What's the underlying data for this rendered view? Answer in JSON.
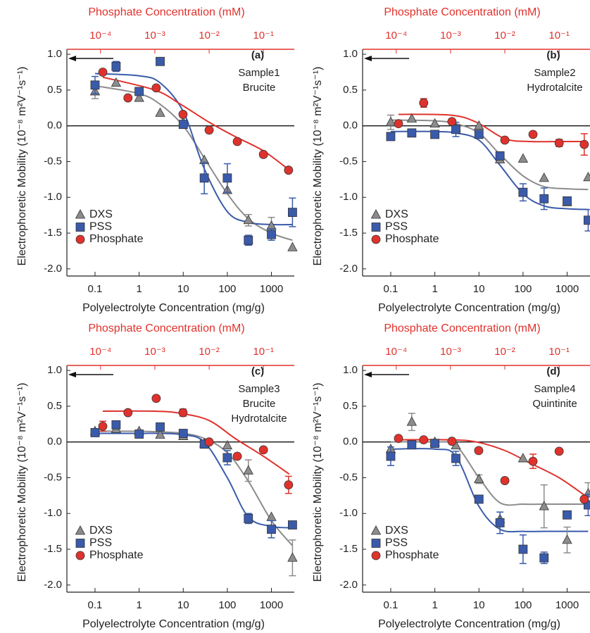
{
  "chart_data": [
    {
      "type": "scatter",
      "label": "(a)",
      "annotation": [
        "Sample1",
        "Brucite"
      ],
      "xlabel": "Polyelectrolyte Concentration (mg/g)",
      "x2label": "Phosphate Concentration (mM)",
      "ylabel": "Electrophoretic Mobility (10⁻⁸ m²V⁻¹s⁻¹)",
      "log_x": true,
      "xlim": [
        0.023,
        3300
      ],
      "xticks": [
        0.1,
        1,
        10,
        100,
        1000
      ],
      "x2lim": [
        2.4e-05,
        0.37
      ],
      "x2ticks": [
        {
          "value": 0.0001,
          "label": "10⁻⁴"
        },
        {
          "value": 0.001,
          "label": "10⁻³"
        },
        {
          "value": 0.01,
          "label": "10⁻²"
        },
        {
          "value": 0.1,
          "label": "10⁻¹"
        }
      ],
      "ylim": [
        -2.1,
        1.07
      ],
      "yticks": [
        {
          "value": 1,
          "label": "1.0"
        },
        {
          "value": 0.5,
          "label": "0.5"
        },
        {
          "value": 0,
          "label": "0.0"
        },
        {
          "value": -0.5,
          "label": "-0.5"
        },
        {
          "value": -1,
          "label": "-1.0"
        },
        {
          "value": -1.5,
          "label": "-1.5"
        },
        {
          "value": -2,
          "label": "-2.0"
        }
      ],
      "series": [
        {
          "name": "DXS",
          "color": "#8c8c8c",
          "marker": "triangle",
          "axis": "x",
          "x": [
            0.1,
            0.3,
            1,
            3,
            10,
            30,
            100,
            300,
            1000,
            3000
          ],
          "values": [
            0.48,
            0.6,
            0.39,
            0.18,
            0.05,
            -0.48,
            -0.9,
            -1.32,
            -1.4,
            -1.7
          ],
          "errors": [
            0.1,
            null,
            null,
            null,
            null,
            null,
            null,
            0.08,
            0.12,
            null
          ],
          "fit_x": [
            0.1,
            1,
            3,
            10,
            30,
            100,
            300,
            1000,
            3000
          ],
          "fit_y": [
            0.56,
            0.45,
            0.3,
            0.0,
            -0.45,
            -0.95,
            -1.3,
            -1.5,
            -1.6
          ]
        },
        {
          "name": "PSS",
          "color": "#3a5bab",
          "marker": "square",
          "axis": "x",
          "x": [
            0.1,
            0.3,
            1,
            3,
            10,
            30,
            100,
            300,
            1000,
            3000
          ],
          "values": [
            0.57,
            0.83,
            0.48,
            0.9,
            0.02,
            -0.73,
            -0.73,
            -1.6,
            -1.52,
            -1.21
          ],
          "errors": [
            0.12,
            0.07,
            null,
            null,
            null,
            0.22,
            0.2,
            0.07,
            0.08,
            0.2
          ],
          "fit_x": [
            0.1,
            1,
            3,
            10,
            30,
            100,
            300,
            1000,
            3000
          ],
          "fit_y": [
            0.73,
            0.7,
            0.6,
            0.2,
            -0.6,
            -1.2,
            -1.35,
            -1.38,
            -1.38
          ]
        },
        {
          "name": "Phosphate",
          "color": "#e0322c",
          "marker": "circle",
          "axis": "x2",
          "x": [
            0.00011,
            0.00032,
            0.00106,
            0.0033,
            0.01,
            0.033,
            0.1,
            0.29
          ],
          "values": [
            0.75,
            0.39,
            0.53,
            0.16,
            -0.06,
            -0.22,
            -0.4,
            -0.62
          ],
          "errors": [
            null,
            null,
            null,
            null,
            null,
            null,
            null,
            null
          ],
          "fit_x": [
            0.00011,
            0.001,
            0.003,
            0.01,
            0.03,
            0.1,
            0.3
          ],
          "fit_y": [
            0.68,
            0.5,
            0.3,
            0.05,
            -0.15,
            -0.35,
            -0.62
          ]
        }
      ]
    },
    {
      "type": "scatter",
      "label": "(b)",
      "annotation": [
        "Sample2",
        "Hydrotalcite"
      ],
      "xlabel": "Polyelectrolyte Concentration (mg/g)",
      "x2label": "Phosphate Concentration (mM)",
      "ylabel": "Electrophoretic Mobility (10⁻⁸ m²V⁻¹s⁻¹)",
      "log_x": true,
      "xlim": [
        0.023,
        3300
      ],
      "xticks": [
        0.1,
        1,
        10,
        100,
        1000
      ],
      "x2lim": [
        2.4e-05,
        0.37
      ],
      "x2ticks": [
        {
          "value": 0.0001,
          "label": "10⁻⁴"
        },
        {
          "value": 0.001,
          "label": "10⁻³"
        },
        {
          "value": 0.01,
          "label": "10⁻²"
        },
        {
          "value": 0.1,
          "label": "10⁻¹"
        }
      ],
      "ylim": [
        -2.1,
        1.07
      ],
      "yticks": [
        {
          "value": 1,
          "label": "1.0"
        },
        {
          "value": 0.5,
          "label": "0.5"
        },
        {
          "value": 0,
          "label": "0.0"
        },
        {
          "value": -0.5,
          "label": "-0.5"
        },
        {
          "value": -1,
          "label": "-1.0"
        },
        {
          "value": -1.5,
          "label": "-1.5"
        },
        {
          "value": -2,
          "label": "-2.0"
        }
      ],
      "series": [
        {
          "name": "DXS",
          "color": "#8c8c8c",
          "marker": "triangle",
          "axis": "x",
          "x": [
            0.1,
            0.3,
            1,
            3,
            10,
            30,
            100,
            300,
            1000,
            3000
          ],
          "values": [
            0.05,
            0.1,
            0.03,
            -0.03,
            0.0,
            -0.47,
            -0.46,
            -0.73,
            -1.07,
            -0.72
          ],
          "errors": [
            0.1,
            null,
            null,
            null,
            null,
            null,
            null,
            null,
            null,
            null
          ],
          "fit_x": [
            0.1,
            1,
            3,
            10,
            30,
            100,
            300,
            1000,
            3000
          ],
          "fit_y": [
            0.08,
            0.07,
            0.03,
            -0.1,
            -0.4,
            -0.7,
            -0.85,
            -0.88,
            -0.89
          ]
        },
        {
          "name": "PSS",
          "color": "#3a5bab",
          "marker": "square",
          "axis": "x",
          "x": [
            0.1,
            0.3,
            1,
            3,
            10,
            30,
            100,
            300,
            1000,
            3000
          ],
          "values": [
            -0.15,
            -0.1,
            -0.12,
            -0.05,
            -0.12,
            -0.42,
            -0.93,
            -1.02,
            -1.05,
            -1.32
          ],
          "errors": [
            null,
            null,
            null,
            0.1,
            null,
            null,
            0.12,
            0.15,
            null,
            0.15
          ],
          "fit_x": [
            0.1,
            1,
            3,
            10,
            30,
            100,
            300,
            1000,
            3000
          ],
          "fit_y": [
            -0.08,
            -0.08,
            -0.1,
            -0.2,
            -0.55,
            -0.95,
            -1.12,
            -1.16,
            -1.17
          ]
        },
        {
          "name": "Phosphate",
          "color": "#e0322c",
          "marker": "circle",
          "axis": "x2",
          "x": [
            0.00011,
            0.00032,
            0.00106,
            0.01,
            0.033,
            0.1,
            0.29
          ],
          "values": [
            0.03,
            0.32,
            0.06,
            -0.2,
            -0.12,
            -0.24,
            -0.26
          ],
          "errors": [
            null,
            0.06,
            null,
            null,
            null,
            0.05,
            0.15
          ],
          "fit_x": [
            0.00011,
            0.001,
            0.003,
            0.01,
            0.03,
            0.1,
            0.3
          ],
          "fit_y": [
            0.16,
            0.15,
            0.05,
            -0.18,
            -0.22,
            -0.22,
            -0.22
          ]
        }
      ]
    },
    {
      "type": "scatter",
      "label": "(c)",
      "annotation": [
        "Sample3",
        "Brucite",
        "Hydrotalcite"
      ],
      "xlabel": "Polyelectrolyte Concentration (mg/g)",
      "x2label": "Phosphate Concentration (mM)",
      "ylabel": "Electrophoretic Mobility (10⁻⁸ m²V⁻¹s⁻¹)",
      "log_x": true,
      "xlim": [
        0.023,
        3300
      ],
      "xticks": [
        0.1,
        1,
        10,
        100,
        1000
      ],
      "x2lim": [
        2.4e-05,
        0.37
      ],
      "x2ticks": [
        {
          "value": 0.0001,
          "label": "10⁻⁴"
        },
        {
          "value": 0.001,
          "label": "10⁻³"
        },
        {
          "value": 0.01,
          "label": "10⁻²"
        },
        {
          "value": 0.1,
          "label": "10⁻¹"
        }
      ],
      "ylim": [
        -2.1,
        1.07
      ],
      "yticks": [
        {
          "value": 1,
          "label": "1.0"
        },
        {
          "value": 0.5,
          "label": "0.5"
        },
        {
          "value": 0,
          "label": "0.0"
        },
        {
          "value": -0.5,
          "label": "-0.5"
        },
        {
          "value": -1,
          "label": "-1.0"
        },
        {
          "value": -1.5,
          "label": "-1.5"
        },
        {
          "value": -2,
          "label": "-2.0"
        }
      ],
      "series": [
        {
          "name": "DXS",
          "color": "#8c8c8c",
          "marker": "triangle",
          "axis": "x",
          "x": [
            0.1,
            0.3,
            1,
            3,
            10,
            30,
            100,
            300,
            1000,
            3000
          ],
          "values": [
            0.15,
            0.18,
            0.15,
            0.1,
            0.08,
            -0.02,
            -0.05,
            -0.4,
            -1.05,
            -1.62
          ],
          "errors": [
            null,
            null,
            null,
            null,
            null,
            null,
            null,
            0.15,
            null,
            0.25
          ],
          "fit_x": [
            0.1,
            1,
            3,
            10,
            30,
            100,
            300,
            1000,
            3000
          ],
          "fit_y": [
            0.15,
            0.15,
            0.14,
            0.12,
            0.05,
            -0.15,
            -0.55,
            -1.1,
            -1.45
          ]
        },
        {
          "name": "PSS",
          "color": "#3a5bab",
          "marker": "square",
          "axis": "x",
          "x": [
            0.1,
            0.3,
            1,
            3,
            10,
            30,
            100,
            300,
            1000,
            3000
          ],
          "values": [
            0.13,
            0.24,
            0.11,
            0.21,
            0.12,
            -0.03,
            -0.22,
            -1.07,
            -1.22,
            -1.16
          ],
          "errors": [
            null,
            null,
            null,
            null,
            null,
            null,
            0.1,
            0.07,
            0.12,
            null
          ],
          "fit_x": [
            0.1,
            1,
            3,
            10,
            30,
            100,
            300,
            1000,
            3000
          ],
          "fit_y": [
            0.12,
            0.12,
            0.12,
            0.1,
            0.0,
            -0.5,
            -1.05,
            -1.18,
            -1.2
          ]
        },
        {
          "name": "Phosphate",
          "color": "#e0322c",
          "marker": "circle",
          "axis": "x2",
          "x": [
            0.00011,
            0.00032,
            0.00106,
            0.0033,
            0.01,
            0.033,
            0.1,
            0.29
          ],
          "values": [
            0.22,
            0.41,
            0.61,
            0.41,
            0.0,
            -0.2,
            -0.11,
            -0.6
          ],
          "errors": [
            0.07,
            null,
            null,
            0.05,
            null,
            null,
            null,
            0.12
          ],
          "fit_x": [
            0.00011,
            0.001,
            0.003,
            0.01,
            0.03,
            0.1,
            0.3
          ],
          "fit_y": [
            0.43,
            0.43,
            0.4,
            0.3,
            0.05,
            -0.2,
            -0.45
          ]
        }
      ]
    },
    {
      "type": "scatter",
      "label": "(d)",
      "annotation": [
        "Sample4",
        "Quintinite"
      ],
      "xlabel": "Polyelectrolyte Concentration (mg/g)",
      "x2label": "Phosphate Concentration (mM)",
      "ylabel": "Electrophoretic Mobility (10⁻⁸ m²V⁻¹s⁻¹)",
      "log_x": true,
      "xlim": [
        0.023,
        3300
      ],
      "xticks": [
        0.1,
        1,
        10,
        100,
        1000
      ],
      "x2lim": [
        2.4e-05,
        0.37
      ],
      "x2ticks": [
        {
          "value": 0.0001,
          "label": "10⁻⁴"
        },
        {
          "value": 0.001,
          "label": "10⁻³"
        },
        {
          "value": 0.01,
          "label": "10⁻²"
        },
        {
          "value": 0.1,
          "label": "10⁻¹"
        }
      ],
      "ylim": [
        -2.1,
        1.07
      ],
      "yticks": [
        {
          "value": 1,
          "label": "1.0"
        },
        {
          "value": 0.5,
          "label": "0.5"
        },
        {
          "value": 0,
          "label": "0.0"
        },
        {
          "value": -0.5,
          "label": "-0.5"
        },
        {
          "value": -1,
          "label": "-1.0"
        },
        {
          "value": -1.5,
          "label": "-1.5"
        },
        {
          "value": -2,
          "label": "-2.0"
        }
      ],
      "series": [
        {
          "name": "DXS",
          "color": "#8c8c8c",
          "marker": "triangle",
          "axis": "x",
          "x": [
            0.1,
            0.3,
            1,
            3,
            10,
            30,
            100,
            300,
            1000,
            3000
          ],
          "values": [
            -0.1,
            0.28,
            0.0,
            -0.05,
            -0.52,
            -1.08,
            -0.23,
            -0.9,
            -1.37,
            -0.72
          ],
          "errors": [
            null,
            0.12,
            null,
            null,
            0.06,
            null,
            null,
            0.3,
            0.18,
            0.15
          ],
          "fit_x": [
            0.1,
            1,
            3,
            10,
            30,
            100,
            300,
            1000,
            3000
          ],
          "fit_y": [
            0.0,
            0.0,
            -0.05,
            -0.5,
            -0.85,
            -0.87,
            -0.87,
            -0.87,
            -0.87
          ]
        },
        {
          "name": "PSS",
          "color": "#3a5bab",
          "marker": "square",
          "axis": "x",
          "x": [
            0.1,
            0.3,
            1,
            3,
            10,
            30,
            100,
            300,
            1000,
            3000
          ],
          "values": [
            -0.2,
            -0.04,
            -0.02,
            -0.23,
            -0.8,
            -1.13,
            -1.5,
            -1.62,
            -1.02,
            -0.88
          ],
          "errors": [
            0.13,
            null,
            null,
            0.1,
            null,
            0.15,
            0.2,
            0.08,
            null,
            0.15
          ],
          "fit_x": [
            0.1,
            1,
            3,
            10,
            30,
            100,
            300,
            1000,
            3000
          ],
          "fit_y": [
            -0.1,
            -0.1,
            -0.2,
            -0.9,
            -1.22,
            -1.25,
            -1.25,
            -1.25,
            -1.25
          ]
        },
        {
          "name": "Phosphate",
          "color": "#e0322c",
          "marker": "circle",
          "axis": "x2",
          "x": [
            0.00011,
            0.00032,
            0.00106,
            0.0033,
            0.01,
            0.033,
            0.1,
            0.29
          ],
          "values": [
            0.05,
            0.03,
            0.01,
            -0.12,
            -0.54,
            -0.27,
            -0.13,
            -0.8
          ],
          "errors": [
            null,
            null,
            null,
            null,
            null,
            0.1,
            null,
            null
          ],
          "fit_x": [
            0.00011,
            0.001,
            0.003,
            0.01,
            0.03,
            0.1,
            0.3
          ],
          "fit_y": [
            0.03,
            0.03,
            0.0,
            -0.12,
            -0.3,
            -0.5,
            -0.75
          ]
        }
      ]
    }
  ]
}
